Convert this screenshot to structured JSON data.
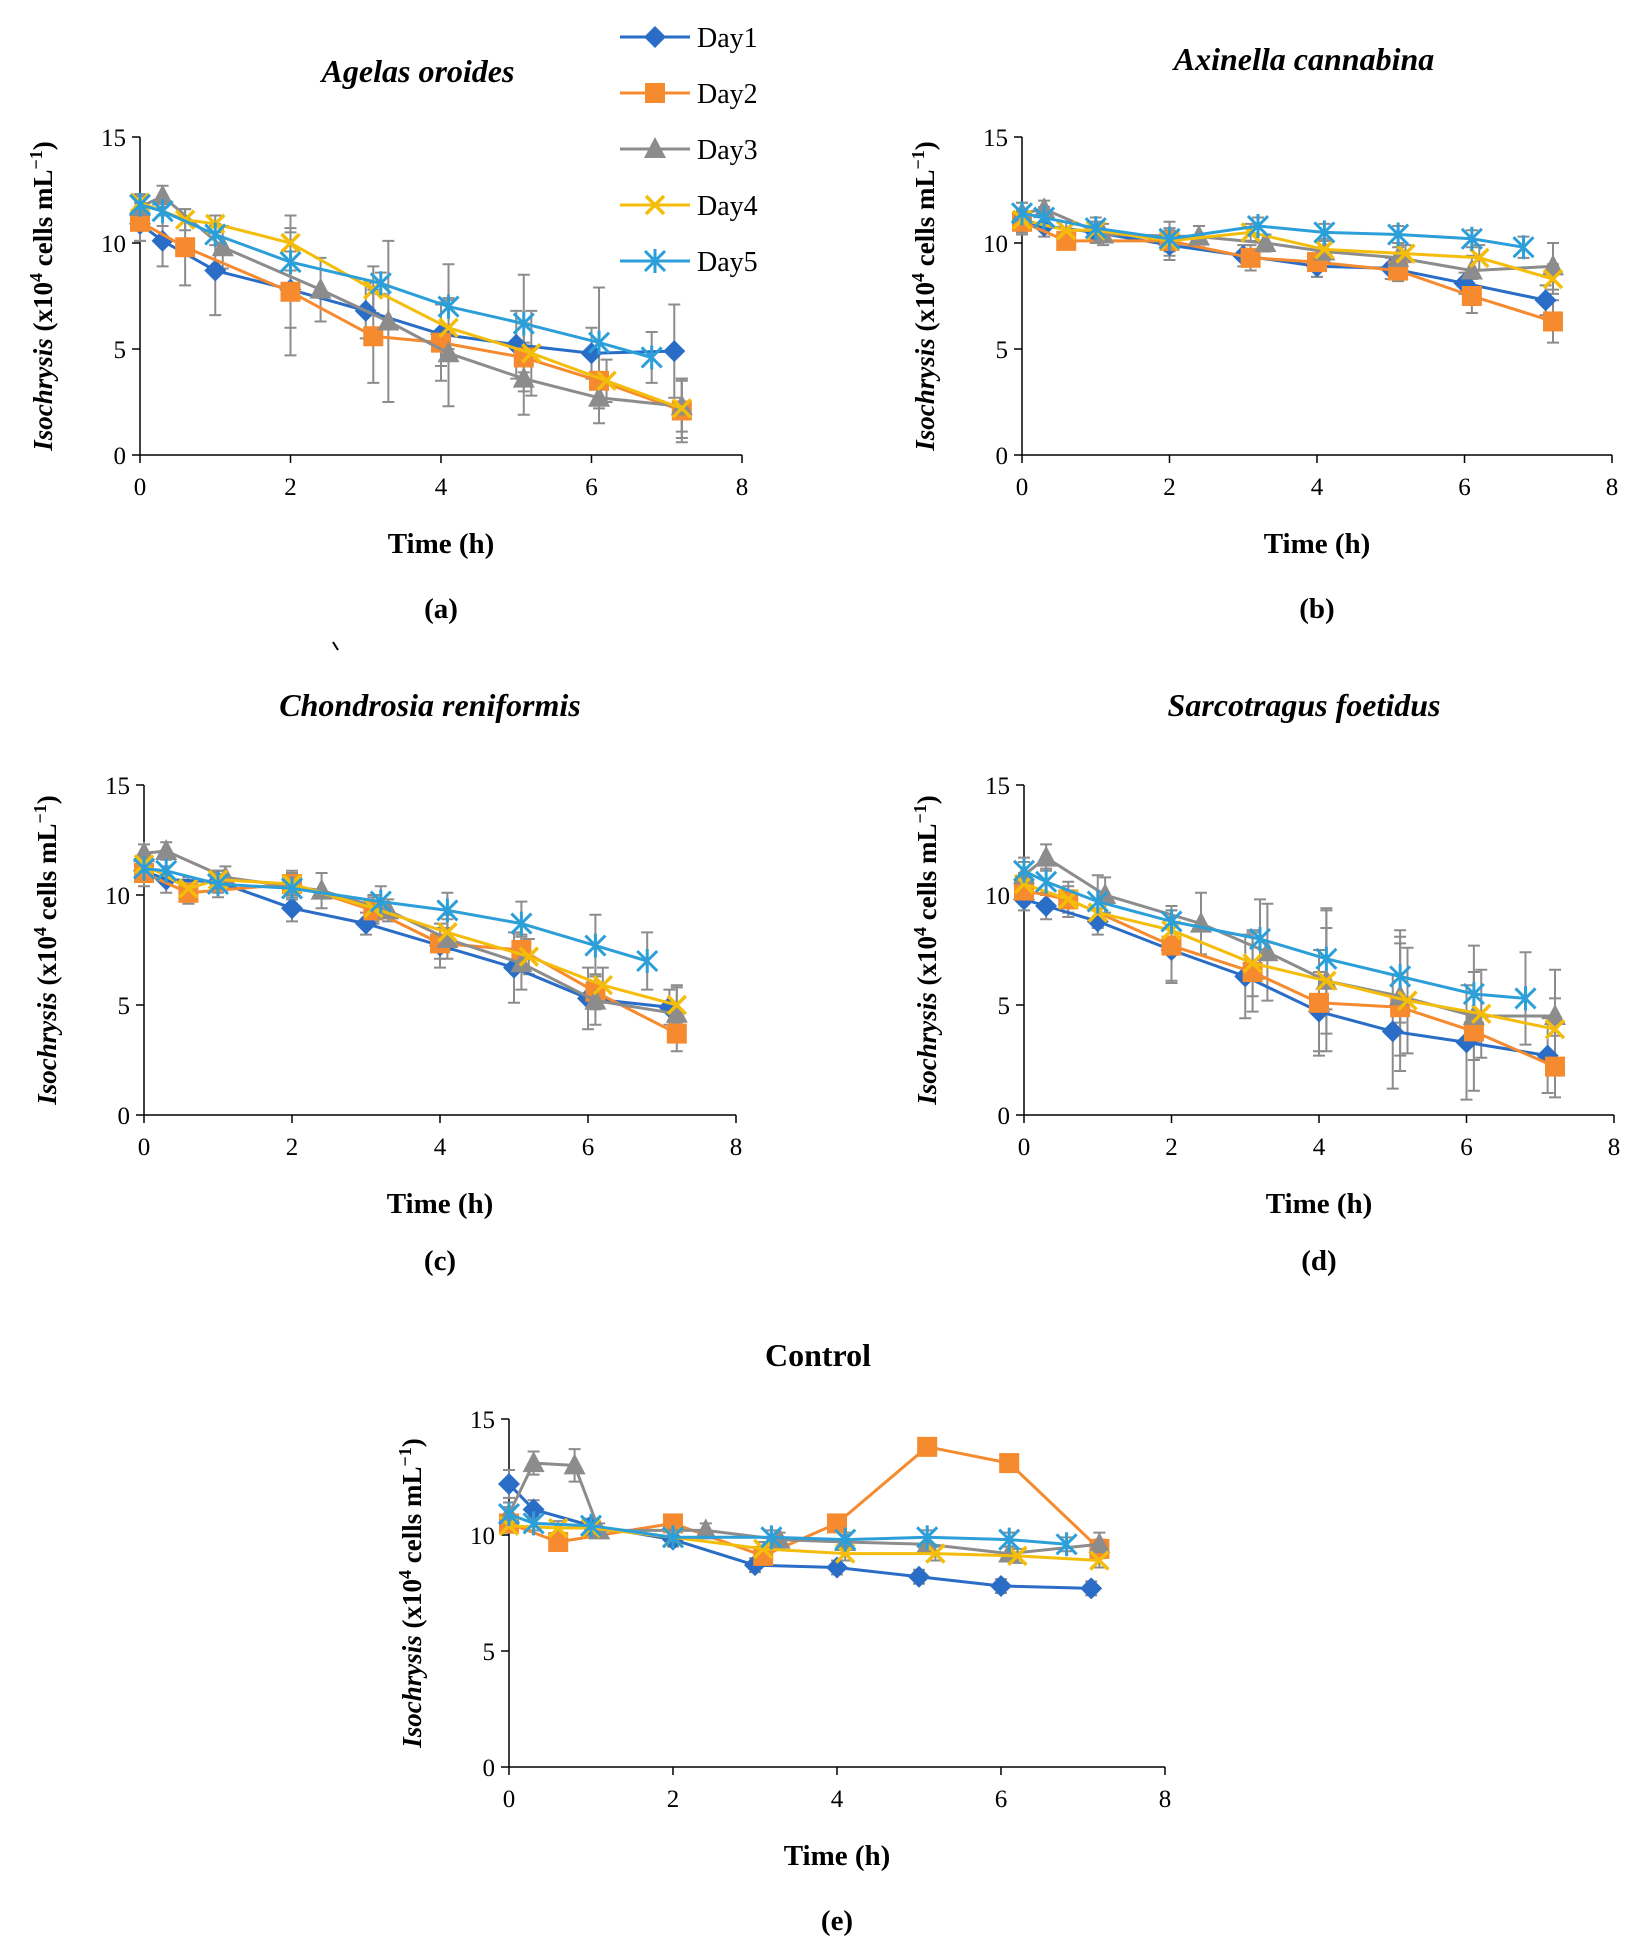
{
  "legend": [
    "Day1",
    "Day2",
    "Day3",
    "Day4",
    "Day5"
  ],
  "series_colors": {
    "Day1": "#2a6dc6",
    "Day2": "#f58a2e",
    "Day3": "#8c8c8c",
    "Day4": "#f5bd0b",
    "Day5": "#2c9fd9"
  },
  "marker_shapes": {
    "Day1": "diamond",
    "Day2": "square",
    "Day3": "triangle",
    "Day4": "x",
    "Day5": "asterisk"
  },
  "chart_data": [
    {
      "type": "line",
      "panel_label": "(a)",
      "title": "Agelas oroides",
      "title_italic": true,
      "xlabel": "Time (h)",
      "ylabel_italic": "Isochrysis",
      "ylabel_rest": " (x10",
      "ylabel_sup": "4",
      "ylabel_tail": " cells mL",
      "ylabel_sup2": "−1",
      "ylabel_close": ")",
      "xlim": [
        0,
        8
      ],
      "ylim": [
        0,
        15
      ],
      "xticks": [
        0,
        2,
        4,
        6,
        8
      ],
      "yticks": [
        0,
        5,
        10,
        15
      ],
      "series": [
        {
          "name": "Day1",
          "x": [
            0,
            0.3,
            1,
            2,
            3,
            4,
            5,
            6,
            7.1
          ],
          "y": [
            10.9,
            10.1,
            8.7,
            7.8,
            6.8,
            5.7,
            5.2,
            4.8,
            4.9
          ],
          "err": [
            0.8,
            1.2,
            2.1,
            1.8,
            1.3,
            1.5,
            1.6,
            1.2,
            2.2
          ]
        },
        {
          "name": "Day2",
          "x": [
            0,
            0.6,
            2,
            3.1,
            4,
            5.1,
            6.1,
            7.2
          ],
          "y": [
            11.0,
            9.8,
            7.7,
            5.6,
            5.3,
            4.6,
            3.5,
            2.1
          ],
          "err": [
            0.9,
            1.8,
            3.0,
            2.2,
            1.8,
            1.6,
            1.3,
            1.5
          ]
        },
        {
          "name": "Day3",
          "x": [
            0,
            0.3,
            1.1,
            2.4,
            3.3,
            4.1,
            5.1,
            6.1,
            7.2
          ],
          "y": [
            11.7,
            12.2,
            9.8,
            7.8,
            6.3,
            4.8,
            3.6,
            2.7,
            2.3
          ],
          "err": [
            0.6,
            0.5,
            1.0,
            1.5,
            3.8,
            2.5,
            1.7,
            1.2,
            1.2
          ]
        },
        {
          "name": "Day4",
          "x": [
            0,
            0.6,
            1,
            2,
            3.1,
            4.1,
            5.2,
            6.2,
            7.2
          ],
          "y": [
            11.9,
            11.1,
            10.9,
            10.0,
            7.8,
            6.0,
            4.8,
            3.5,
            2.2
          ],
          "err": [
            0.4,
            0.5,
            0.4,
            1.3,
            1.1,
            1.4,
            2.0,
            1.0,
            1.4
          ]
        },
        {
          "name": "Day5",
          "x": [
            0,
            0.3,
            1,
            2,
            3.2,
            4.1,
            5.1,
            6.1,
            6.8
          ],
          "y": [
            11.8,
            11.5,
            10.4,
            9.1,
            8.1,
            7.0,
            6.2,
            5.3,
            4.6
          ],
          "err": [
            0.4,
            0.7,
            0.5,
            1.4,
            0.5,
            2.0,
            2.3,
            2.6,
            1.2
          ]
        }
      ]
    },
    {
      "type": "line",
      "panel_label": "(b)",
      "title": "Axinella cannabina",
      "title_italic": true,
      "xlabel": "Time (h)",
      "ylabel_italic": "Isochrysis",
      "ylabel_rest": " (x10",
      "ylabel_sup": "4",
      "ylabel_tail": " cells mL",
      "ylabel_sup2": "−1",
      "ylabel_close": ")",
      "xlim": [
        0,
        8
      ],
      "ylim": [
        0,
        15
      ],
      "xticks": [
        0,
        2,
        4,
        6,
        8
      ],
      "yticks": [
        0,
        5,
        10,
        15
      ],
      "series": [
        {
          "name": "Day1",
          "x": [
            0,
            0.3,
            1,
            2,
            3,
            4,
            5,
            6,
            7.1
          ],
          "y": [
            11.0,
            10.8,
            10.5,
            9.9,
            9.4,
            8.9,
            8.8,
            8.1,
            7.3
          ],
          "err": [
            0.5,
            0.5,
            0.5,
            0.5,
            0.5,
            0.5,
            0.5,
            0.5,
            0.7
          ]
        },
        {
          "name": "Day2",
          "x": [
            0,
            0.6,
            2,
            3.1,
            4,
            5.1,
            6.1,
            7.2
          ],
          "y": [
            11.0,
            10.1,
            10.1,
            9.3,
            9.1,
            8.7,
            7.5,
            6.3
          ],
          "err": [
            0.6,
            0.4,
            0.9,
            0.6,
            0.7,
            0.5,
            0.8,
            1.0
          ]
        },
        {
          "name": "Day3",
          "x": [
            0,
            0.3,
            1.1,
            2.4,
            3.3,
            4.1,
            5.1,
            6.1,
            7.2
          ],
          "y": [
            11.4,
            11.6,
            10.4,
            10.3,
            10.0,
            9.6,
            9.3,
            8.7,
            8.9
          ],
          "err": [
            0.5,
            0.4,
            0.5,
            0.5,
            0.4,
            0.5,
            0.5,
            0.7,
            1.1
          ]
        },
        {
          "name": "Day4",
          "x": [
            0,
            0.6,
            1,
            2,
            3.1,
            4.1,
            5.2,
            6.2,
            7.2
          ],
          "y": [
            11.1,
            10.6,
            10.6,
            10.1,
            10.5,
            9.7,
            9.5,
            9.3,
            8.3
          ],
          "err": [
            0.4,
            0.4,
            0.4,
            0.5,
            0.4,
            0.5,
            0.4,
            0.6,
            0.7
          ]
        },
        {
          "name": "Day5",
          "x": [
            0,
            0.3,
            1,
            2,
            3.2,
            4.1,
            5.1,
            6.1,
            6.8
          ],
          "y": [
            11.4,
            11.2,
            10.7,
            10.2,
            10.8,
            10.5,
            10.4,
            10.2,
            9.8
          ],
          "err": [
            0.5,
            0.5,
            0.5,
            0.5,
            0.4,
            0.4,
            0.4,
            0.4,
            0.5
          ]
        }
      ]
    },
    {
      "type": "line",
      "panel_label": "(c)",
      "title": "Chondrosia reniformis",
      "title_italic": true,
      "xlabel": "Time (h)",
      "ylabel_italic": "Isochrysis",
      "ylabel_rest": " (x10",
      "ylabel_sup": "4",
      "ylabel_tail": " cells mL",
      "ylabel_sup2": "−1",
      "ylabel_close": ")",
      "xlim": [
        0,
        8
      ],
      "ylim": [
        0,
        15
      ],
      "xticks": [
        0,
        2,
        4,
        6,
        8
      ],
      "yticks": [
        0,
        5,
        10,
        15
      ],
      "series": [
        {
          "name": "Day1",
          "x": [
            0,
            0.3,
            1,
            2,
            3,
            4,
            5,
            6,
            7.1
          ],
          "y": [
            11.1,
            10.7,
            10.6,
            9.4,
            8.7,
            7.7,
            6.7,
            5.3,
            4.9
          ],
          "err": [
            0.5,
            0.6,
            0.5,
            0.6,
            0.5,
            1.0,
            1.6,
            1.4,
            0.8
          ]
        },
        {
          "name": "Day2",
          "x": [
            0,
            0.6,
            2,
            3.1,
            4,
            5.1,
            6.1,
            7.2
          ],
          "y": [
            11.0,
            10.1,
            10.5,
            9.3,
            7.8,
            7.5,
            5.6,
            3.7
          ],
          "err": [
            0.6,
            0.5,
            0.5,
            0.6,
            0.7,
            0.7,
            0.8,
            0.8
          ]
        },
        {
          "name": "Day3",
          "x": [
            0,
            0.3,
            1.1,
            2.4,
            3.3,
            4.1,
            5.1,
            6.1,
            7.2
          ],
          "y": [
            11.9,
            12.0,
            10.8,
            10.2,
            9.3,
            8.0,
            6.9,
            5.2,
            4.6
          ],
          "err": [
            0.4,
            0.4,
            0.5,
            0.8,
            0.5,
            0.9,
            1.2,
            1.1,
            1.3
          ]
        },
        {
          "name": "Day4",
          "x": [
            0,
            0.6,
            1,
            2,
            3.1,
            4.1,
            5.2,
            6.2,
            7.2
          ],
          "y": [
            11.4,
            10.3,
            10.7,
            10.5,
            9.4,
            8.3,
            7.2,
            5.9,
            5.0
          ],
          "err": [
            0.4,
            0.5,
            0.4,
            0.6,
            0.6,
            0.8,
            0.8,
            0.8,
            0.8
          ]
        },
        {
          "name": "Day5",
          "x": [
            0,
            0.3,
            1,
            2,
            3.2,
            4.1,
            5.1,
            6.1,
            6.8
          ],
          "y": [
            11.2,
            11.1,
            10.5,
            10.3,
            9.7,
            9.3,
            8.7,
            7.7,
            7.0
          ],
          "err": [
            0.6,
            0.6,
            0.6,
            0.5,
            0.7,
            0.8,
            1.0,
            1.4,
            1.3
          ]
        }
      ]
    },
    {
      "type": "line",
      "panel_label": "(d)",
      "title": "Sarcotragus foetidus",
      "title_italic": true,
      "xlabel": "Time (h)",
      "ylabel_italic": "Isochrysis",
      "ylabel_rest": " (x10",
      "ylabel_sup": "4",
      "ylabel_tail": " cells mL",
      "ylabel_sup2": "−1",
      "ylabel_close": ")",
      "xlim": [
        0,
        8
      ],
      "ylim": [
        0,
        15
      ],
      "xticks": [
        0,
        2,
        4,
        6,
        8
      ],
      "yticks": [
        0,
        5,
        10,
        15
      ],
      "series": [
        {
          "name": "Day1",
          "x": [
            0,
            0.3,
            1,
            2,
            3,
            4,
            5,
            6,
            7.1
          ],
          "y": [
            9.8,
            9.5,
            8.8,
            7.5,
            6.3,
            4.7,
            3.8,
            3.3,
            2.7
          ],
          "err": [
            0.5,
            0.6,
            0.6,
            1.5,
            1.9,
            1.8,
            2.6,
            2.6,
            1.7
          ]
        },
        {
          "name": "Day2",
          "x": [
            0,
            0.6,
            2,
            3.1,
            4,
            5.1,
            6.1,
            7.2
          ],
          "y": [
            10.2,
            9.8,
            7.7,
            6.5,
            5.1,
            4.9,
            3.8,
            2.2
          ],
          "err": [
            0.6,
            0.8,
            1.6,
            1.8,
            2.4,
            2.9,
            2.7,
            1.4
          ]
        },
        {
          "name": "Day3",
          "x": [
            0,
            0.3,
            1.1,
            2.4,
            3.3,
            4.1,
            5.1,
            6.1,
            7.2
          ],
          "y": [
            10.9,
            11.7,
            10.0,
            8.7,
            7.4,
            6.1,
            5.4,
            4.5,
            4.5
          ],
          "err": [
            0.6,
            0.6,
            0.8,
            1.4,
            2.2,
            3.2,
            2.7,
            2.0,
            2.1
          ]
        },
        {
          "name": "Day4",
          "x": [
            0,
            0.6,
            1,
            2,
            3.1,
            4.1,
            5.2,
            6.2,
            7.2
          ],
          "y": [
            10.5,
            9.8,
            9.2,
            8.4,
            6.9,
            6.1,
            5.2,
            4.6,
            3.9
          ],
          "err": [
            0.5,
            0.6,
            0.6,
            0.9,
            1.5,
            2.4,
            2.4,
            2.0,
            1.4
          ]
        },
        {
          "name": "Day5",
          "x": [
            0,
            0.3,
            1,
            2,
            3.2,
            4.1,
            5.1,
            6.1,
            6.8
          ],
          "y": [
            11.1,
            10.6,
            9.7,
            8.8,
            8.0,
            7.1,
            6.3,
            5.5,
            5.3
          ],
          "err": [
            0.6,
            0.6,
            1.2,
            0.7,
            1.8,
            2.3,
            2.1,
            2.2,
            2.1
          ]
        }
      ]
    },
    {
      "type": "line",
      "panel_label": "(e)",
      "title": "Control",
      "title_italic": false,
      "xlabel": "Time (h)",
      "ylabel_italic": "Isochrysis",
      "ylabel_rest": " (x10",
      "ylabel_sup": "4",
      "ylabel_tail": " cells mL",
      "ylabel_sup2": "−1",
      "ylabel_close": ")",
      "xlim": [
        0,
        8
      ],
      "ylim": [
        0,
        15
      ],
      "xticks": [
        0,
        2,
        4,
        6,
        8
      ],
      "yticks": [
        0,
        5,
        10,
        15
      ],
      "series": [
        {
          "name": "Day1",
          "x": [
            0,
            0.3,
            1,
            2,
            3,
            4,
            5,
            6,
            7.1
          ],
          "y": [
            12.2,
            11.1,
            10.4,
            9.8,
            8.7,
            8.6,
            8.2,
            7.8,
            7.7
          ],
          "err": [
            0.6,
            0.4,
            0.3,
            0.3,
            0.3,
            0.3,
            0.3,
            0.3,
            0.3
          ]
        },
        {
          "name": "Day2",
          "x": [
            0,
            0.6,
            2,
            3.1,
            4,
            5.1,
            6.1,
            7.2
          ],
          "y": [
            10.5,
            9.7,
            10.5,
            9.1,
            10.5,
            13.8,
            13.1,
            9.4
          ],
          "err": [
            0.4,
            0.3,
            0.3,
            0.3,
            0.3,
            0.3,
            0.3,
            0.4
          ]
        },
        {
          "name": "Day3",
          "x": [
            0,
            0.3,
            0.8,
            1.1,
            2.4,
            3.3,
            4.1,
            5.1,
            6.1,
            7.2
          ],
          "y": [
            10.9,
            13.1,
            13.0,
            10.2,
            10.2,
            9.8,
            9.7,
            9.6,
            9.2,
            9.6
          ],
          "err": [
            0.5,
            0.5,
            0.7,
            0.3,
            0.3,
            0.3,
            0.3,
            0.3,
            0.3,
            0.5
          ]
        },
        {
          "name": "Day4",
          "x": [
            0,
            0.6,
            1,
            2,
            3.1,
            4.1,
            5.2,
            6.2,
            7.2
          ],
          "y": [
            10.4,
            10.3,
            10.3,
            9.9,
            9.4,
            9.2,
            9.2,
            9.1,
            8.9
          ],
          "err": [
            0.3,
            0.3,
            0.3,
            0.3,
            0.3,
            0.3,
            0.3,
            0.3,
            0.3
          ]
        },
        {
          "name": "Day5",
          "x": [
            0,
            0.3,
            1,
            2,
            3.2,
            4.1,
            5.1,
            6.1,
            6.8
          ],
          "y": [
            10.9,
            10.5,
            10.4,
            9.9,
            9.9,
            9.8,
            9.9,
            9.8,
            9.6
          ],
          "err": [
            0.3,
            0.3,
            0.3,
            0.3,
            0.3,
            0.3,
            0.3,
            0.3,
            0.3
          ]
        }
      ]
    }
  ]
}
